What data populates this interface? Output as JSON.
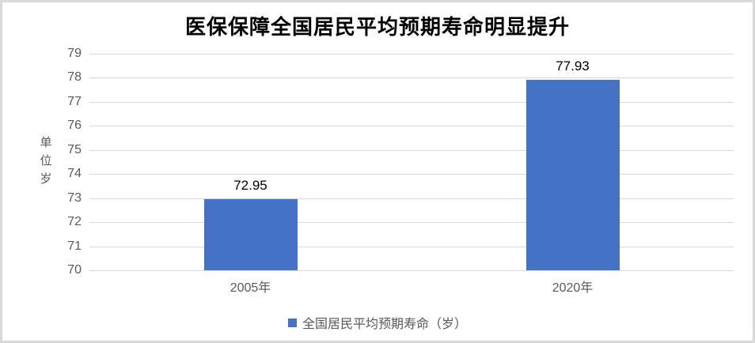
{
  "chart_data": {
    "type": "bar",
    "title": "医保保障全国居民平均预期寿命明显提升",
    "categories": [
      "2005年",
      "2020年"
    ],
    "values": [
      72.95,
      77.93
    ],
    "data_labels": [
      "72.95",
      "77.93"
    ],
    "series_name": "全国居民平均预期寿命（岁）",
    "xlabel": "",
    "ylabel": "单位岁",
    "ylim": [
      70,
      79
    ],
    "ytick_step": 1,
    "yticks": [
      70,
      71,
      72,
      73,
      74,
      75,
      76,
      77,
      78,
      79
    ],
    "grid": true,
    "legend_position": "bottom",
    "colors": {
      "bar": "#4472C4",
      "gridline": "#D9D9D9",
      "axis_text": "#595959",
      "title_text": "#000000",
      "data_label_text": "#000000",
      "frame_border": "#D9D9D9",
      "background": "#FFFFFF"
    }
  }
}
